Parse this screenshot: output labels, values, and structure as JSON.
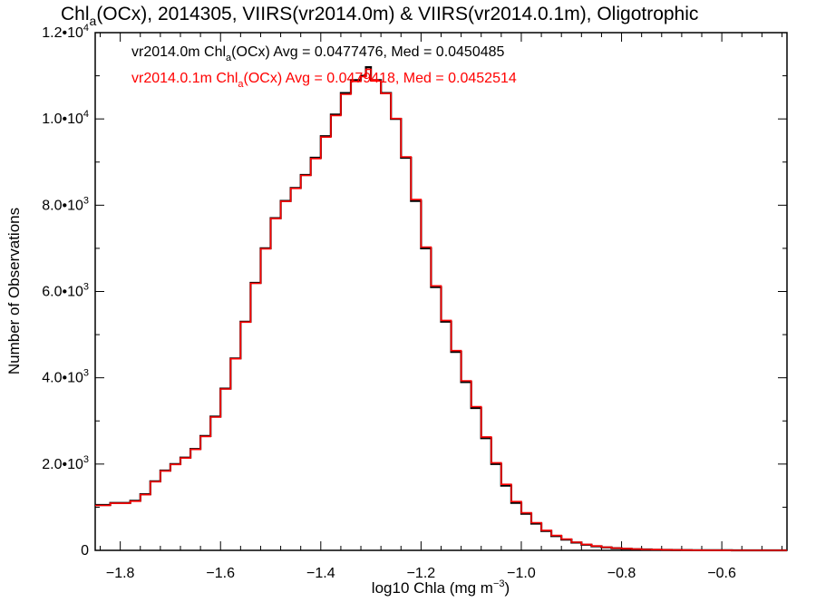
{
  "chart_data": {
    "type": "line",
    "title": {
      "pre": "Chl",
      "sub": "a",
      "post": "(OCx), 2014305, VIIRS(vr2014.0m) & VIIRS(vr2014.0.1m), Oligotrophic"
    },
    "xlabel": {
      "pre": "log10 Chla (mg m",
      "sup": "−3",
      "post": ")"
    },
    "ylabel": "Number of Observations",
    "xlim": [
      -1.85,
      -0.47
    ],
    "ylim": [
      0,
      12000
    ],
    "step": true,
    "grid": false,
    "x_ticks": [
      {
        "value": -1.8,
        "label": "−1.8"
      },
      {
        "value": -1.6,
        "label": "−1.6"
      },
      {
        "value": -1.4,
        "label": "−1.4"
      },
      {
        "value": -1.2,
        "label": "−1.2"
      },
      {
        "value": -1.0,
        "label": "−1.0"
      },
      {
        "value": -0.8,
        "label": "−0.8"
      },
      {
        "value": -0.6,
        "label": "−0.6"
      }
    ],
    "y_ticks": [
      {
        "value": 0,
        "label": "0",
        "sup": ""
      },
      {
        "value": 2000,
        "label": "2.0•10",
        "sup": "3"
      },
      {
        "value": 4000,
        "label": "4.0•10",
        "sup": "3"
      },
      {
        "value": 6000,
        "label": "6.0•10",
        "sup": "3"
      },
      {
        "value": 8000,
        "label": "8.0•10",
        "sup": "3"
      },
      {
        "value": 10000,
        "label": "1.0•10",
        "sup": "4"
      },
      {
        "value": 12000,
        "label": "1.2•10",
        "sup": "4"
      }
    ],
    "annotations": [
      {
        "pre": "vr2014.0m Chl",
        "sub": "a",
        "post": "(OCx) Avg = 0.0477476, Med = 0.0450485",
        "color": "#000000"
      },
      {
        "pre": "vr2014.0.1m Chl",
        "sub": "a",
        "post": "(OCx) Avg = 0.0479418, Med = 0.0452514",
        "color": "#ff0000"
      }
    ],
    "x": [
      -1.85,
      -1.82,
      -1.78,
      -1.76,
      -1.74,
      -1.72,
      -1.7,
      -1.68,
      -1.66,
      -1.64,
      -1.62,
      -1.6,
      -1.58,
      -1.56,
      -1.54,
      -1.52,
      -1.5,
      -1.48,
      -1.46,
      -1.44,
      -1.42,
      -1.4,
      -1.38,
      -1.36,
      -1.34,
      -1.32,
      -1.31,
      -1.3,
      -1.28,
      -1.26,
      -1.24,
      -1.22,
      -1.2,
      -1.18,
      -1.16,
      -1.14,
      -1.12,
      -1.1,
      -1.08,
      -1.06,
      -1.04,
      -1.02,
      -1.0,
      -0.98,
      -0.96,
      -0.94,
      -0.92,
      -0.9,
      -0.88,
      -0.86,
      -0.84,
      -0.82,
      -0.8,
      -0.78,
      -0.76,
      -0.74,
      -0.72,
      -0.7,
      -0.68,
      -0.66,
      -0.64,
      -0.62,
      -0.6,
      -0.58,
      -0.56,
      -0.54,
      -0.52,
      -0.5,
      -0.48,
      -0.47
    ],
    "series": [
      {
        "name": "vr2014.0m",
        "color": "#000000",
        "values": [
          1050,
          1100,
          1150,
          1300,
          1600,
          1850,
          2000,
          2150,
          2350,
          2650,
          3100,
          3750,
          4450,
          5300,
          6200,
          7000,
          7700,
          8100,
          8400,
          8700,
          9100,
          9600,
          10100,
          10600,
          10900,
          11000,
          11200,
          10900,
          10600,
          10000,
          9100,
          8100,
          7000,
          6100,
          5300,
          4600,
          3900,
          3300,
          2600,
          2000,
          1500,
          1100,
          850,
          620,
          450,
          330,
          250,
          180,
          130,
          95,
          70,
          50,
          38,
          28,
          20,
          15,
          11,
          8,
          6,
          4,
          3,
          2,
          2,
          1,
          1,
          1,
          1,
          0,
          0,
          0
        ]
      },
      {
        "name": "vr2014.0.1m",
        "color": "#ff0000",
        "values": [
          1040,
          1090,
          1140,
          1290,
          1590,
          1840,
          1990,
          2140,
          2340,
          2640,
          3090,
          3740,
          4440,
          5290,
          6190,
          6990,
          7690,
          8090,
          8390,
          8690,
          9080,
          9580,
          10080,
          10570,
          10870,
          10980,
          11150,
          10880,
          10590,
          10010,
          9120,
          8130,
          7030,
          6130,
          5330,
          4630,
          3930,
          3330,
          2630,
          2030,
          1530,
          1130,
          870,
          640,
          465,
          345,
          260,
          190,
          138,
          100,
          74,
          53,
          40,
          29,
          21,
          16,
          12,
          9,
          6,
          4,
          3,
          2,
          2,
          1,
          1,
          1,
          1,
          0,
          0,
          0
        ]
      }
    ]
  }
}
